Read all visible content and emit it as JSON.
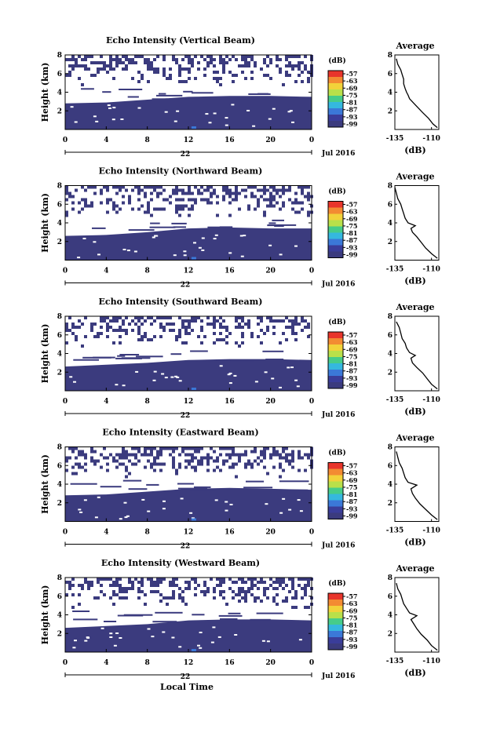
{
  "figure": {
    "xlabel": "Local Time",
    "date_label": "Jul 2016",
    "date_day": "22",
    "colorbar_unit": "(dB)",
    "colorbar_ticks": [
      "-57",
      "-63",
      "-69",
      "-75",
      "-81",
      "-87",
      "-93",
      "-99"
    ],
    "colorbar_colors": [
      "#e8352b",
      "#f38b32",
      "#f2d23a",
      "#b9e04a",
      "#46cc8a",
      "#35b8df",
      "#3b78d8",
      "#3a3d9a",
      "#3b3b7e"
    ],
    "avg_title": "Average",
    "avg_xlabel": "(dB)",
    "x_tick_labels": [
      "0",
      "4",
      "8",
      "12",
      "16",
      "20",
      "0"
    ],
    "y_tick_labels": [
      "2",
      "4",
      "6",
      "8"
    ],
    "ylabel": "Height (km)"
  },
  "chart_data": [
    {
      "type": "heatmap",
      "title": "Echo Intensity (Vertical Beam)",
      "ylabel": "Height (km)",
      "xlim": [
        0,
        24
      ],
      "ylim": [
        0,
        8
      ],
      "boundary_height_km": [
        [
          0,
          2.8
        ],
        [
          4,
          2.9
        ],
        [
          8,
          3.2
        ],
        [
          12,
          3.5
        ],
        [
          16,
          3.6
        ],
        [
          20,
          3.6
        ],
        [
          24,
          3.5
        ]
      ],
      "profile": {
        "title": "Average",
        "xlabel": "(dB)",
        "xlim": [
          -135,
          -105
        ],
        "x_tick_labels": [
          "-135",
          "-110"
        ],
        "ylim": [
          0,
          8
        ],
        "points": [
          [
            -106,
            0.2
          ],
          [
            -109,
            0.6
          ],
          [
            -112,
            1.2
          ],
          [
            -116,
            1.8
          ],
          [
            -119,
            2.3
          ],
          [
            -122,
            2.8
          ],
          [
            -125,
            3.3
          ],
          [
            -126,
            3.7
          ],
          [
            -127,
            4.0
          ],
          [
            -128,
            4.4
          ],
          [
            -129,
            4.9
          ],
          [
            -129,
            5.4
          ],
          [
            -130,
            5.9
          ],
          [
            -131,
            6.4
          ],
          [
            -133,
            7.0
          ],
          [
            -134,
            7.6
          ]
        ]
      }
    },
    {
      "type": "heatmap",
      "title": "Echo Intensity (Northward Beam)",
      "ylabel": "Height (km)",
      "xlim": [
        0,
        24
      ],
      "ylim": [
        0,
        8
      ],
      "boundary_height_km": [
        [
          0,
          2.6
        ],
        [
          4,
          2.7
        ],
        [
          8,
          3.0
        ],
        [
          12,
          3.4
        ],
        [
          16,
          3.5
        ],
        [
          20,
          3.4
        ],
        [
          24,
          3.4
        ]
      ],
      "profile": {
        "title": "Average",
        "xlabel": "(dB)",
        "xlim": [
          -135,
          -105
        ],
        "x_tick_labels": [
          "-135",
          "-110"
        ],
        "ylim": [
          0,
          8
        ],
        "points": [
          [
            -106,
            0.2
          ],
          [
            -110,
            0.7
          ],
          [
            -114,
            1.3
          ],
          [
            -117,
            1.9
          ],
          [
            -120,
            2.5
          ],
          [
            -123,
            3.0
          ],
          [
            -124,
            3.4
          ],
          [
            -121,
            3.7
          ],
          [
            -126,
            4.0
          ],
          [
            -128,
            4.5
          ],
          [
            -129,
            5.0
          ],
          [
            -130,
            5.5
          ],
          [
            -131,
            6.0
          ],
          [
            -133,
            6.6
          ],
          [
            -134,
            7.2
          ],
          [
            -135,
            7.8
          ]
        ]
      }
    },
    {
      "type": "heatmap",
      "title": "Echo Intensity (Southward Beam)",
      "ylabel": "Height (km)",
      "xlim": [
        0,
        24
      ],
      "ylim": [
        0,
        8
      ],
      "boundary_height_km": [
        [
          0,
          2.6
        ],
        [
          4,
          2.8
        ],
        [
          8,
          3.0
        ],
        [
          12,
          3.3
        ],
        [
          16,
          3.4
        ],
        [
          20,
          3.4
        ],
        [
          24,
          3.3
        ]
      ],
      "profile": {
        "title": "Average",
        "xlabel": "(dB)",
        "xlim": [
          -135,
          -105
        ],
        "x_tick_labels": [
          "-135",
          "-110"
        ],
        "ylim": [
          0,
          8
        ],
        "points": [
          [
            -106,
            0.2
          ],
          [
            -110,
            0.7
          ],
          [
            -113,
            1.3
          ],
          [
            -116,
            1.9
          ],
          [
            -120,
            2.5
          ],
          [
            -123,
            3.0
          ],
          [
            -124,
            3.5
          ],
          [
            -121,
            3.8
          ],
          [
            -125,
            4.1
          ],
          [
            -127,
            4.6
          ],
          [
            -128,
            5.1
          ],
          [
            -130,
            5.6
          ],
          [
            -131,
            6.2
          ],
          [
            -132,
            6.8
          ],
          [
            -134,
            7.4
          ]
        ]
      }
    },
    {
      "type": "heatmap",
      "title": "Echo Intensity (Eastward Beam)",
      "ylabel": "Height (km)",
      "xlim": [
        0,
        24
      ],
      "ylim": [
        0,
        8
      ],
      "boundary_height_km": [
        [
          0,
          2.8
        ],
        [
          4,
          2.9
        ],
        [
          8,
          3.2
        ],
        [
          12,
          3.5
        ],
        [
          16,
          3.6
        ],
        [
          20,
          3.5
        ],
        [
          24,
          3.4
        ]
      ],
      "profile": {
        "title": "Average",
        "xlabel": "(dB)",
        "xlim": [
          -135,
          -105
        ],
        "x_tick_labels": [
          "-135",
          "-110"
        ],
        "ylim": [
          0,
          8
        ],
        "points": [
          [
            -106,
            0.2
          ],
          [
            -110,
            0.7
          ],
          [
            -114,
            1.3
          ],
          [
            -118,
            1.9
          ],
          [
            -121,
            2.5
          ],
          [
            -123,
            3.0
          ],
          [
            -124,
            3.5
          ],
          [
            -120,
            3.9
          ],
          [
            -126,
            4.2
          ],
          [
            -128,
            4.7
          ],
          [
            -129,
            5.2
          ],
          [
            -130,
            5.7
          ],
          [
            -132,
            6.3
          ],
          [
            -133,
            6.9
          ],
          [
            -134,
            7.5
          ]
        ]
      }
    },
    {
      "type": "heatmap",
      "title": "Echo Intensity (Westward Beam)",
      "ylabel": "Height (km)",
      "xlim": [
        0,
        24
      ],
      "ylim": [
        0,
        8
      ],
      "boundary_height_km": [
        [
          0,
          2.6
        ],
        [
          4,
          2.8
        ],
        [
          8,
          3.0
        ],
        [
          12,
          3.4
        ],
        [
          16,
          3.5
        ],
        [
          20,
          3.5
        ],
        [
          24,
          3.4
        ]
      ],
      "profile": {
        "title": "Average",
        "xlabel": "(dB)",
        "xlim": [
          -135,
          -105
        ],
        "x_tick_labels": [
          "-135",
          "-110"
        ],
        "ylim": [
          0,
          8
        ],
        "points": [
          [
            -106,
            0.2
          ],
          [
            -110,
            0.7
          ],
          [
            -113,
            1.3
          ],
          [
            -117,
            1.9
          ],
          [
            -120,
            2.5
          ],
          [
            -122,
            3.0
          ],
          [
            -124,
            3.5
          ],
          [
            -120,
            3.9
          ],
          [
            -125,
            4.2
          ],
          [
            -127,
            4.7
          ],
          [
            -129,
            5.2
          ],
          [
            -130,
            5.7
          ],
          [
            -131,
            6.2
          ],
          [
            -133,
            6.8
          ],
          [
            -134,
            7.4
          ]
        ]
      }
    }
  ]
}
